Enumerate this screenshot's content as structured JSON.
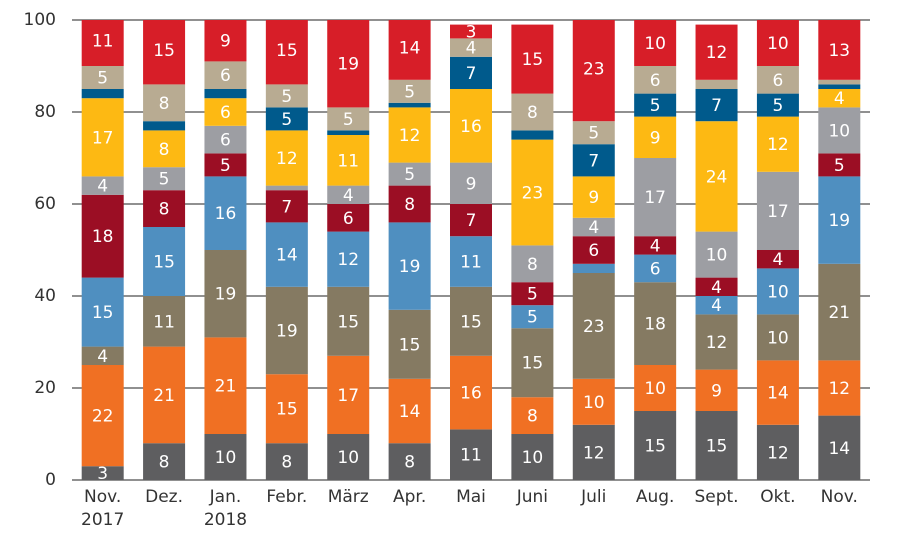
{
  "chart_data": {
    "type": "stacked_bar",
    "categories": [
      "Nov. 2017",
      "Dez.",
      "Jan. 2018",
      "Febr.",
      "März",
      "Apr.",
      "Mai",
      "Juni",
      "Juli",
      "Aug.",
      "Sept.",
      "Okt.",
      "Nov."
    ],
    "series": [
      {
        "color": "#5e5e60",
        "values": [
          3,
          8,
          10,
          8,
          10,
          8,
          11,
          10,
          12,
          15,
          15,
          12,
          14
        ]
      },
      {
        "color": "#f07023",
        "values": [
          22,
          21,
          21,
          15,
          17,
          14,
          16,
          8,
          10,
          10,
          9,
          14,
          12
        ]
      },
      {
        "color": "#857a62",
        "values": [
          4,
          11,
          19,
          19,
          15,
          15,
          15,
          15,
          23,
          18,
          12,
          10,
          21
        ]
      },
      {
        "color": "#4f8fc0",
        "values": [
          15,
          15,
          16,
          14,
          12,
          19,
          11,
          5,
          2,
          6,
          4,
          10,
          19
        ]
      },
      {
        "color": "#9b0e24",
        "values": [
          18,
          8,
          5,
          7,
          6,
          8,
          7,
          5,
          6,
          4,
          4,
          4,
          5
        ]
      },
      {
        "color": "#9d9ea3",
        "values": [
          4,
          5,
          6,
          1,
          4,
          5,
          9,
          8,
          4,
          17,
          10,
          17,
          10
        ]
      },
      {
        "color": "#fdb913",
        "values": [
          17,
          8,
          6,
          12,
          11,
          12,
          16,
          23,
          9,
          9,
          24,
          12,
          4
        ]
      },
      {
        "color": "#005a8c",
        "values": [
          2,
          2,
          2,
          5,
          1,
          1,
          7,
          2,
          7,
          5,
          7,
          5,
          1
        ]
      },
      {
        "color": "#b8ab92",
        "values": [
          5,
          8,
          6,
          5,
          5,
          5,
          4,
          8,
          5,
          6,
          2,
          6,
          1
        ]
      },
      {
        "color": "#d71e28",
        "values": [
          11,
          15,
          9,
          15,
          19,
          14,
          3,
          15,
          23,
          10,
          12,
          10,
          13
        ]
      }
    ],
    "label_min": 3,
    "ylim": [
      0,
      100
    ],
    "yticks": [
      0,
      20,
      40,
      60,
      80,
      100
    ],
    "grid": true
  }
}
